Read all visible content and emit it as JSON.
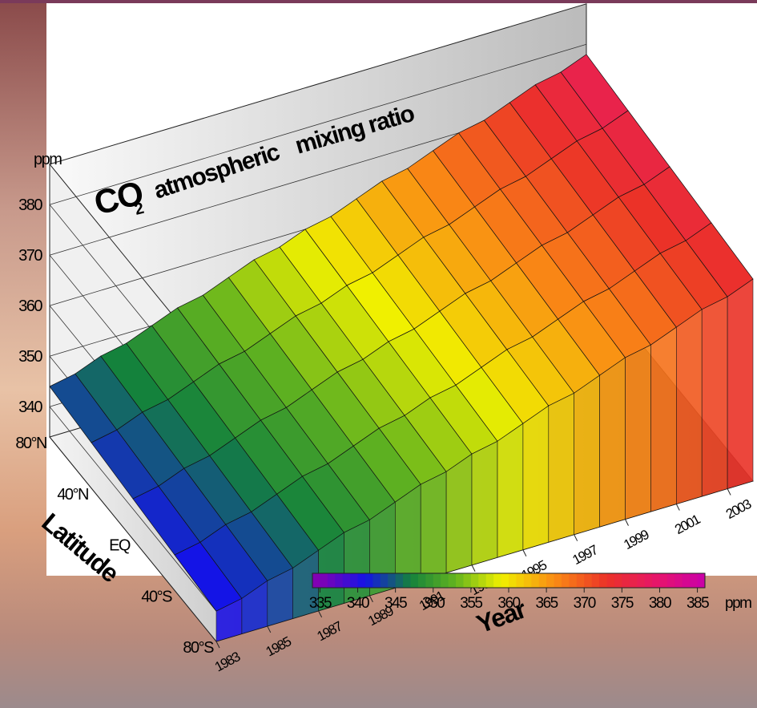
{
  "chart_data": {
    "type": "surface3d",
    "title_parts": [
      "CO",
      "2",
      "atmospheric",
      "mixing ratio"
    ],
    "z_label": "ppm",
    "x_label": "Year",
    "y_label": "Latitude",
    "x": [
      1983,
      1984,
      1985,
      1986,
      1987,
      1988,
      1989,
      1990,
      1991,
      1992,
      1993,
      1994,
      1995,
      1996,
      1997,
      1998,
      1999,
      2000,
      2001,
      2002,
      2003,
      2004
    ],
    "xlim": [
      1983,
      2004
    ],
    "xticks": [
      1983,
      1985,
      1987,
      1989,
      1991,
      1993,
      1995,
      1997,
      1999,
      2001,
      2003
    ],
    "latitudes": [
      "80°N",
      "40°N",
      "EQ",
      "40°S",
      "80°S"
    ],
    "zlim": [
      334,
      388
    ],
    "zticks": [
      340,
      350,
      360,
      370,
      380
    ],
    "surface": [
      [
        344,
        345,
        347,
        348,
        350,
        352,
        353,
        355,
        357,
        358,
        360,
        361,
        363,
        365,
        366,
        368,
        370,
        371,
        373,
        375,
        376,
        378
      ],
      [
        343,
        344,
        346,
        347,
        349,
        351,
        352,
        354,
        356,
        357,
        359,
        360,
        362,
        364,
        365,
        367,
        369,
        370,
        372,
        374,
        375,
        377
      ],
      [
        342,
        343,
        345,
        346,
        348,
        350,
        351,
        353,
        355,
        356,
        358,
        359,
        361,
        363,
        364,
        366,
        368,
        369,
        371,
        373,
        374,
        376
      ],
      [
        341,
        342,
        344,
        345,
        347,
        349,
        350,
        352,
        354,
        355,
        357,
        358,
        360,
        362,
        363,
        365,
        367,
        368,
        370,
        372,
        373,
        375
      ],
      [
        340,
        341,
        343,
        344,
        346,
        348,
        349,
        351,
        353,
        354,
        356,
        357,
        359,
        361,
        362,
        364,
        366,
        367,
        369,
        371,
        372,
        374
      ]
    ],
    "colorbar_lim": [
      334,
      386
    ],
    "colorbar_ticks": [
      335,
      340,
      345,
      350,
      355,
      360,
      365,
      370,
      375,
      380,
      385
    ],
    "colorbar_unit": "ppm"
  }
}
